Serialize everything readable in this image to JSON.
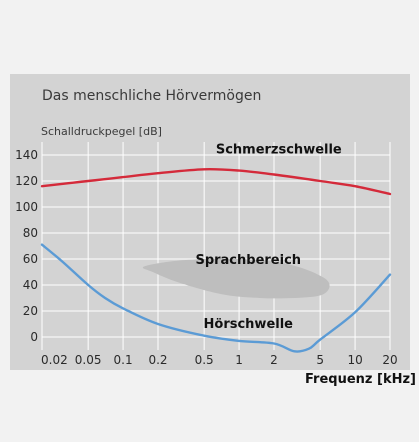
{
  "chart_data": {
    "type": "line",
    "title": "Das menschliche Hörvermögen",
    "ylabel": "Schalldruckpegel [dB]",
    "xlabel": "Frequenz [kHz]",
    "x_scale": "log",
    "xlim": [
      0.02,
      20
    ],
    "ylim": [
      -10,
      150
    ],
    "x_ticks": [
      {
        "label": "0.02",
        "value": 0.02
      },
      {
        "label": "0.05",
        "value": 0.05
      },
      {
        "label": "0.1",
        "value": 0.1
      },
      {
        "label": "0.2",
        "value": 0.2
      },
      {
        "label": "0.5",
        "value": 0.5
      },
      {
        "label": "1",
        "value": 1
      },
      {
        "label": "2",
        "value": 2
      },
      {
        "label": "5",
        "value": 5
      },
      {
        "label": "10",
        "value": 10
      },
      {
        "label": "20",
        "value": 20
      }
    ],
    "y_ticks": [
      {
        "label": "0",
        "value": 0
      },
      {
        "label": "20",
        "value": 20
      },
      {
        "label": "40",
        "value": 40
      },
      {
        "label": "60",
        "value": 60
      },
      {
        "label": "80",
        "value": 80
      },
      {
        "label": "100",
        "value": 100
      },
      {
        "label": "120",
        "value": 120
      },
      {
        "label": "140",
        "value": 140
      }
    ],
    "grid": true,
    "series": [
      {
        "name": "Schmerzschwelle",
        "color": "#d42a3a",
        "x": [
          0.02,
          0.05,
          0.1,
          0.2,
          0.5,
          1,
          2,
          5,
          10,
          20
        ],
        "y": [
          116,
          120,
          123,
          126,
          129,
          128,
          125,
          120,
          116,
          110
        ]
      },
      {
        "name": "Hörschwelle",
        "color": "#5b9bd5",
        "x": [
          0.02,
          0.03,
          0.05,
          0.07,
          0.1,
          0.2,
          0.5,
          1,
          2,
          3,
          4,
          5,
          10,
          20
        ],
        "y": [
          71,
          58,
          40,
          30,
          22,
          10,
          1,
          -3,
          -5,
          -11,
          -9,
          -2,
          19,
          48
        ]
      }
    ],
    "annotations": [
      {
        "text": "Schmerzschwelle",
        "x": 2.2,
        "y": 141
      },
      {
        "text": "Sprachbereich",
        "x": 1.2,
        "y": 56
      },
      {
        "text": "Hörschwelle",
        "x": 1.2,
        "y": 7
      }
    ],
    "speech_region": {
      "x": [
        0.15,
        0.25,
        0.5,
        1,
        2,
        3.5,
        5.5,
        6,
        5,
        3,
        1.5,
        0.7,
        0.3,
        0.18
      ],
      "y": [
        54,
        58,
        60,
        60,
        58,
        53,
        45,
        38,
        32,
        30,
        30,
        33,
        42,
        50
      ]
    }
  }
}
